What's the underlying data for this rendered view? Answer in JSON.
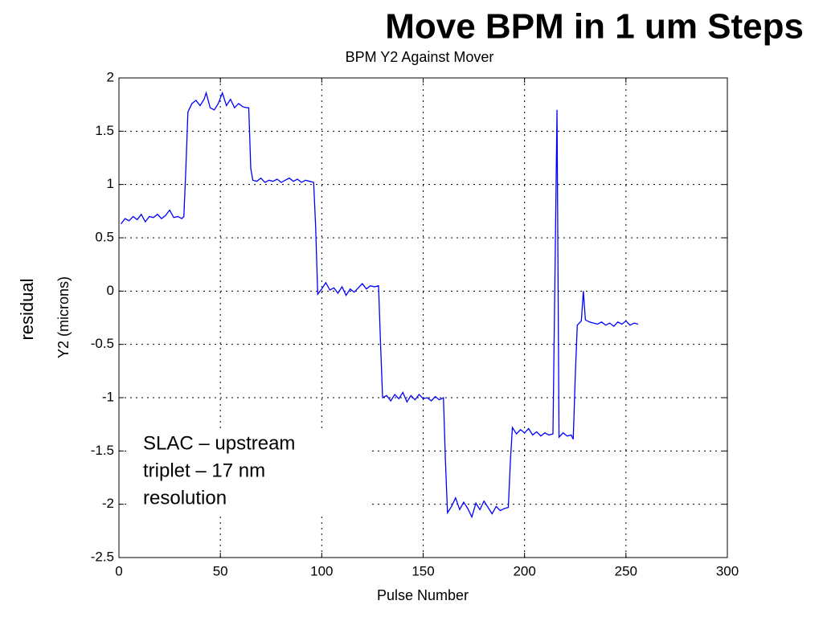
{
  "chart_data": {
    "type": "line",
    "slide_title": "Move BPM in 1 um Steps",
    "title": "BPM Y2 Against Mover",
    "x_label": "Pulse Number",
    "y_label": "Y2 (microns)",
    "side_label": "residual",
    "annotation": [
      "SLAC – upstream",
      "triplet – 17 nm",
      "resolution"
    ],
    "xlim": [
      0,
      300
    ],
    "xticks": [
      0,
      50,
      100,
      150,
      200,
      250,
      300
    ],
    "ylim": [
      -2.5,
      2
    ],
    "yticks": [
      2,
      1.5,
      1,
      0.5,
      0,
      -0.5,
      -1,
      -1.5,
      -2,
      -2.5
    ],
    "grid": true,
    "series": [
      {
        "color": "#0000ff",
        "x": [
          1,
          3,
          5,
          7,
          9,
          11,
          13,
          15,
          17,
          19,
          21,
          23,
          25,
          27,
          29,
          31,
          32,
          33,
          34,
          36,
          38,
          40,
          42,
          43,
          45,
          47,
          49,
          51,
          53,
          55,
          57,
          59,
          61,
          63,
          64,
          65,
          66,
          68,
          70,
          72,
          74,
          76,
          78,
          80,
          82,
          84,
          86,
          88,
          90,
          92,
          94,
          96,
          97,
          98,
          100,
          102,
          104,
          106,
          108,
          110,
          112,
          114,
          116,
          118,
          120,
          122,
          124,
          126,
          128,
          129,
          130,
          132,
          134,
          136,
          138,
          140,
          142,
          144,
          146,
          148,
          150,
          152,
          154,
          156,
          158,
          160,
          161,
          162,
          164,
          166,
          168,
          170,
          172,
          174,
          176,
          178,
          180,
          182,
          184,
          186,
          188,
          190,
          192,
          193,
          194,
          196,
          198,
          200,
          202,
          204,
          206,
          208,
          210,
          212,
          214,
          215,
          216,
          217,
          219,
          221,
          223,
          224,
          225,
          226,
          228,
          229,
          230,
          232,
          234,
          236,
          238,
          240,
          242,
          244,
          246,
          248,
          250,
          252,
          254,
          256
        ],
        "values": [
          0.63,
          0.68,
          0.66,
          0.7,
          0.67,
          0.72,
          0.65,
          0.7,
          0.69,
          0.72,
          0.68,
          0.71,
          0.76,
          0.69,
          0.7,
          0.68,
          0.7,
          1.15,
          1.68,
          1.76,
          1.79,
          1.74,
          1.8,
          1.86,
          1.72,
          1.7,
          1.76,
          1.86,
          1.74,
          1.8,
          1.72,
          1.76,
          1.73,
          1.72,
          1.72,
          1.15,
          1.04,
          1.03,
          1.06,
          1.02,
          1.04,
          1.03,
          1.05,
          1.02,
          1.04,
          1.06,
          1.03,
          1.05,
          1.02,
          1.04,
          1.03,
          1.02,
          0.6,
          -0.03,
          0.02,
          0.08,
          0.01,
          0.03,
          -0.02,
          0.04,
          -0.04,
          0.02,
          -0.01,
          0.03,
          0.07,
          0.02,
          0.05,
          0.04,
          0.05,
          -0.5,
          -1.0,
          -0.98,
          -1.03,
          -0.97,
          -1.01,
          -0.95,
          -1.04,
          -0.98,
          -1.02,
          -0.97,
          -1.01,
          -1.0,
          -1.03,
          -0.99,
          -1.02,
          -1.0,
          -1.6,
          -2.08,
          -2.02,
          -1.94,
          -2.05,
          -1.98,
          -2.04,
          -2.12,
          -1.99,
          -2.05,
          -1.97,
          -2.03,
          -2.09,
          -2.02,
          -2.06,
          -2.04,
          -2.03,
          -1.6,
          -1.28,
          -1.34,
          -1.3,
          -1.33,
          -1.29,
          -1.35,
          -1.32,
          -1.36,
          -1.33,
          -1.35,
          -1.34,
          0.15,
          1.7,
          -1.37,
          -1.33,
          -1.36,
          -1.35,
          -1.39,
          -0.8,
          -0.32,
          -0.28,
          0.0,
          -0.27,
          -0.29,
          -0.3,
          -0.31,
          -0.29,
          -0.32,
          -0.3,
          -0.33,
          -0.29,
          -0.31,
          -0.28,
          -0.32,
          -0.3,
          -0.31
        ]
      }
    ]
  }
}
